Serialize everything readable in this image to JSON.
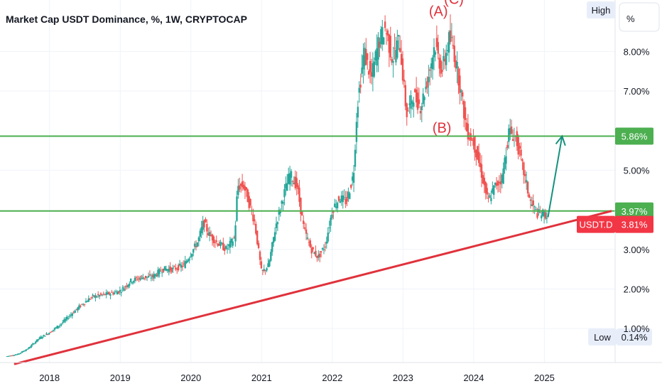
{
  "title": "Market Cap USDT Dominance, %, 1W, CRYPTOCAP",
  "scale_mode_label": "High",
  "unit_label": "%",
  "low_label": "Low",
  "low_value": "0.14%",
  "colors": {
    "up": "#26a69a",
    "down": "#ef5350",
    "support_line": "#4caf50",
    "trend_line": "#e0323c",
    "arrow": "#15917e",
    "price_tag": "#f23645",
    "grid": "#f0f3fa"
  },
  "chart_data": {
    "type": "line",
    "title": "Market Cap USDT Dominance, %, 1W, CRYPTOCAP",
    "series_name": "USDT.D",
    "x_tick_labels": [
      "2018",
      "2019",
      "2020",
      "2021",
      "2022",
      "2023",
      "2024",
      "2025"
    ],
    "y_tick_labels": [
      "1.00%",
      "2.00%",
      "3.00%",
      "5.00%",
      "7.00%",
      "8.00%"
    ],
    "y_ticks": [
      1,
      2,
      3,
      5,
      7,
      8
    ],
    "ylim": [
      0.14,
      9.3
    ],
    "xlim": [
      2017.3,
      2026.0
    ],
    "x": [
      2017.4,
      2017.55,
      2017.7,
      2017.85,
      2018.0,
      2018.15,
      2018.3,
      2018.45,
      2018.6,
      2018.75,
      2018.9,
      2019.0,
      2019.15,
      2019.3,
      2019.45,
      2019.6,
      2019.75,
      2019.9,
      2020.0,
      2020.1,
      2020.18,
      2020.25,
      2020.35,
      2020.5,
      2020.62,
      2020.66,
      2020.75,
      2020.9,
      2021.0,
      2021.1,
      2021.2,
      2021.3,
      2021.4,
      2021.5,
      2021.6,
      2021.7,
      2021.8,
      2021.9,
      2022.0,
      2022.1,
      2022.2,
      2022.3,
      2022.35,
      2022.45,
      2022.55,
      2022.65,
      2022.75,
      2022.85,
      2022.95,
      2023.05,
      2023.15,
      2023.25,
      2023.35,
      2023.45,
      2023.55,
      2023.65,
      2023.7,
      2023.8,
      2023.9,
      2024.0,
      2024.1,
      2024.2,
      2024.3,
      2024.4,
      2024.5,
      2024.6,
      2024.7,
      2024.8,
      2024.9,
      2025.0,
      2025.05
    ],
    "values": [
      0.3,
      0.35,
      0.5,
      0.75,
      0.9,
      1.1,
      1.35,
      1.6,
      1.8,
      1.85,
      1.9,
      1.95,
      2.2,
      2.3,
      2.3,
      2.5,
      2.5,
      2.6,
      2.9,
      3.2,
      3.7,
      3.4,
      3.2,
      3.0,
      3.3,
      4.6,
      4.6,
      3.7,
      2.4,
      2.6,
      3.6,
      4.3,
      4.9,
      4.6,
      3.5,
      3.0,
      2.8,
      3.1,
      4.0,
      4.3,
      4.2,
      4.9,
      6.6,
      8.0,
      7.3,
      8.2,
      8.6,
      7.8,
      8.3,
      6.4,
      6.9,
      6.6,
      7.3,
      8.2,
      7.5,
      8.3,
      8.2,
      7.2,
      6.0,
      5.7,
      5.0,
      4.2,
      4.6,
      4.8,
      6.0,
      5.8,
      5.0,
      4.2,
      3.9,
      3.9,
      3.81
    ],
    "horizontal_levels": [
      {
        "value": 5.86,
        "label": "5.86%"
      },
      {
        "value": 3.97,
        "label": "3.97%"
      }
    ],
    "trend_line": {
      "from": [
        2017.5,
        0.1
      ],
      "to": [
        2025.95,
        3.97
      ]
    },
    "projection_arrow": {
      "from": [
        2025.05,
        3.81
      ],
      "to": [
        2025.25,
        5.86
      ]
    },
    "last_value": {
      "name": "USDT.D",
      "value": 3.81,
      "label": "3.81%"
    },
    "wave_labels": [
      {
        "text": "(A)",
        "x": 2023.5,
        "y": 8.9
      },
      {
        "text": "(C)",
        "x": 2023.72,
        "y": 9.2
      },
      {
        "text": "(B)",
        "x": 2023.55,
        "y": 5.95
      }
    ]
  }
}
